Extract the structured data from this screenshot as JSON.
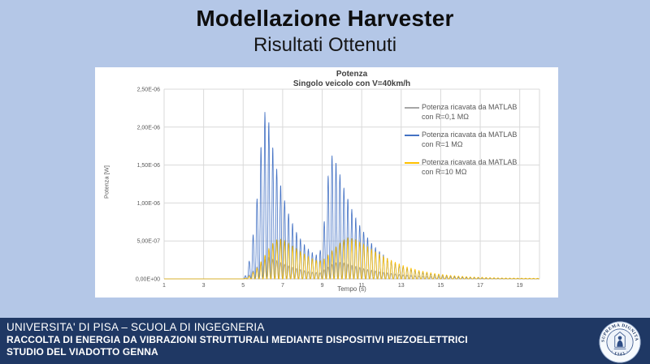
{
  "slide": {
    "title": "Modellazione Harvester",
    "subtitle": "Risultati Ottenuti"
  },
  "footer": {
    "line1": "UNIVERSITA' DI PISA – SCUOLA DI INGEGNERIA",
    "line2": "RACCOLTA DI ENERGIA DA VIBRAZIONI STRUTTURALI MEDIANTE DISPOSITIVI PIEZOELETTRICI",
    "line3": "STUDIO DEL VIADOTTO GENNA",
    "logo": {
      "top_text": "IN SUPREMA DIGNITATIS",
      "bottom_text": "· 1343 ·"
    }
  },
  "chart_data": {
    "type": "line",
    "title": "Potenza",
    "subtitle": "Singolo veicolo con V=40km/h",
    "xlabel": "Tempo (s)",
    "ylabel": "Potenza [W]",
    "xlim": [
      1,
      20
    ],
    "ylim": [
      0,
      2.5e-06
    ],
    "grid": true,
    "legend_position": "right-overlay",
    "x_ticks": [
      1,
      3,
      5,
      7,
      9,
      11,
      13,
      15,
      17,
      19
    ],
    "y_ticks": [
      {
        "value": 0,
        "label": "0,00E+00"
      },
      {
        "value": 5e-07,
        "label": "5,00E-07"
      },
      {
        "value": 1e-06,
        "label": "1,00E-06"
      },
      {
        "value": 1.5e-06,
        "label": "1,50E-06"
      },
      {
        "value": 2e-06,
        "label": "2,00E-06"
      },
      {
        "value": 2.5e-06,
        "label": "2,50E-06"
      }
    ],
    "colors": {
      "gridline": "#D9D9D9",
      "axis": "#BFBFBF",
      "tick_text": "#595959"
    },
    "spike_period_s": 0.2,
    "series": [
      {
        "name": "Potenza ricavata da MATLAB con R=0,1 MΩ",
        "legend_lines": [
          "Potenza ricavata da MATLAB",
          "con R=0,1 MΩ"
        ],
        "color": "#A6A6A6",
        "envelope": [
          [
            1,
            0
          ],
          [
            5.05,
            0
          ],
          [
            5.3,
            5e-08
          ],
          [
            5.6,
            1.3e-07
          ],
          [
            6.0,
            2.4e-07
          ],
          [
            6.3,
            2.8e-07
          ],
          [
            6.7,
            2.4e-07
          ],
          [
            7.2,
            1.8e-07
          ],
          [
            7.8,
            1.3e-07
          ],
          [
            8.4,
            9e-08
          ],
          [
            8.9,
            8e-08
          ],
          [
            9.2,
            1.4e-07
          ],
          [
            9.6,
            2.1e-07
          ],
          [
            10.0,
            2.2e-07
          ],
          [
            10.5,
            1.8e-07
          ],
          [
            11.2,
            1.3e-07
          ],
          [
            12.0,
            9e-08
          ],
          [
            13.0,
            5.5e-08
          ],
          [
            14.2,
            3e-08
          ],
          [
            16.0,
            1.5e-08
          ],
          [
            18.0,
            7e-09
          ],
          [
            20,
            4e-09
          ]
        ]
      },
      {
        "name": "Potenza ricavata da MATLAB con R=1 MΩ",
        "legend_lines": [
          "Potenza ricavata da MATLAB",
          "con R=1 MΩ"
        ],
        "color": "#4472C4",
        "envelope": [
          [
            1,
            0
          ],
          [
            5.0,
            0
          ],
          [
            5.2,
            8e-08
          ],
          [
            5.45,
            4.5e-07
          ],
          [
            5.7,
            1.05e-06
          ],
          [
            5.95,
            1.9e-06
          ],
          [
            6.1,
            2.2e-06
          ],
          [
            6.25,
            2.15e-06
          ],
          [
            6.45,
            1.8e-06
          ],
          [
            6.7,
            1.45e-06
          ],
          [
            7.0,
            1.12e-06
          ],
          [
            7.3,
            8.6e-07
          ],
          [
            7.6,
            6.6e-07
          ],
          [
            8.0,
            4.8e-07
          ],
          [
            8.4,
            3.6e-07
          ],
          [
            8.8,
            3e-07
          ],
          [
            9.0,
            4.5e-07
          ],
          [
            9.2,
            1.05e-06
          ],
          [
            9.4,
            1.65e-06
          ],
          [
            9.6,
            1.6e-06
          ],
          [
            9.85,
            1.42e-06
          ],
          [
            10.1,
            1.2e-06
          ],
          [
            10.4,
            9.8e-07
          ],
          [
            10.7,
            8e-07
          ],
          [
            11.0,
            6.6e-07
          ],
          [
            11.4,
            5e-07
          ],
          [
            11.8,
            3.8e-07
          ],
          [
            12.3,
            2.7e-07
          ],
          [
            12.8,
            1.9e-07
          ],
          [
            13.4,
            1.3e-07
          ],
          [
            14.0,
            8.5e-08
          ],
          [
            14.8,
            5e-08
          ],
          [
            15.6,
            3e-08
          ],
          [
            16.5,
            1.7e-08
          ],
          [
            18.0,
            8e-09
          ],
          [
            20,
            4e-09
          ]
        ]
      },
      {
        "name": "Potenza ricavata da MATLAB con R=10 MΩ",
        "legend_lines": [
          "Potenza ricavata da MATLAB",
          "con R=10 MΩ"
        ],
        "color": "#FFC000",
        "envelope": [
          [
            1,
            0
          ],
          [
            5.05,
            0
          ],
          [
            5.35,
            4e-08
          ],
          [
            5.7,
            1.4e-07
          ],
          [
            6.05,
            2.9e-07
          ],
          [
            6.4,
            4.4e-07
          ],
          [
            6.75,
            5.3e-07
          ],
          [
            7.05,
            5.1e-07
          ],
          [
            7.45,
            4.4e-07
          ],
          [
            7.95,
            3.5e-07
          ],
          [
            8.45,
            2.7e-07
          ],
          [
            8.85,
            2.3e-07
          ],
          [
            9.15,
            2.7e-07
          ],
          [
            9.5,
            3.7e-07
          ],
          [
            9.9,
            4.7e-07
          ],
          [
            10.25,
            5.4e-07
          ],
          [
            10.6,
            5.3e-07
          ],
          [
            11.0,
            4.7e-07
          ],
          [
            11.5,
            3.9e-07
          ],
          [
            12.0,
            3.1e-07
          ],
          [
            12.6,
            2.3e-07
          ],
          [
            13.2,
            1.65e-07
          ],
          [
            13.9,
            1.1e-07
          ],
          [
            14.7,
            7e-08
          ],
          [
            15.5,
            4.5e-08
          ],
          [
            16.5,
            2.5e-08
          ],
          [
            18.0,
            1.2e-08
          ],
          [
            20,
            7e-09
          ]
        ]
      }
    ]
  }
}
